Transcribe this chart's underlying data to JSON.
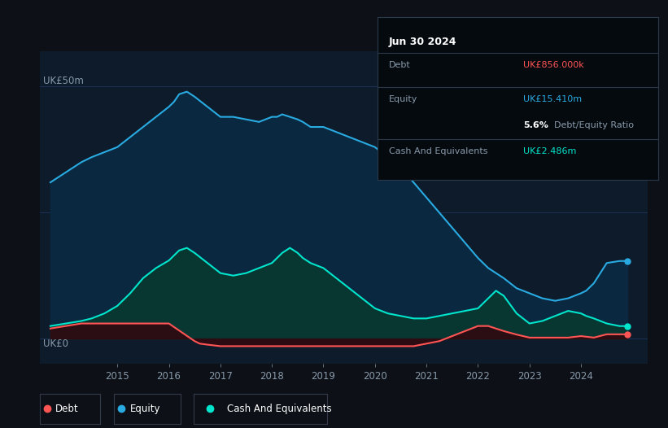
{
  "bg_color": "#0d1117",
  "plot_bg_color": "#0d1b2a",
  "grid_color": "#1e3050",
  "ylim": [
    -5,
    57
  ],
  "xlim_start": 2013.5,
  "xlim_end": 2025.3,
  "xticks": [
    2015,
    2016,
    2017,
    2018,
    2019,
    2020,
    2021,
    2022,
    2023,
    2024
  ],
  "equity_color": "#29abe2",
  "debt_color": "#ff5555",
  "cash_color": "#00e5cc",
  "equity_data_x": [
    2013.7,
    2014.0,
    2014.3,
    2014.5,
    2014.75,
    2015.0,
    2015.25,
    2015.5,
    2015.75,
    2016.0,
    2016.1,
    2016.2,
    2016.35,
    2016.5,
    2016.75,
    2017.0,
    2017.25,
    2017.5,
    2017.75,
    2018.0,
    2018.1,
    2018.2,
    2018.35,
    2018.5,
    2018.6,
    2018.75,
    2019.0,
    2019.25,
    2019.5,
    2019.75,
    2020.0,
    2020.25,
    2020.5,
    2020.75,
    2021.0,
    2021.25,
    2021.5,
    2021.75,
    2022.0,
    2022.1,
    2022.2,
    2022.35,
    2022.5,
    2022.75,
    2023.0,
    2023.25,
    2023.5,
    2023.75,
    2024.0,
    2024.1,
    2024.25,
    2024.5,
    2024.75,
    2024.9
  ],
  "equity_data_y": [
    31,
    33,
    35,
    36,
    37,
    38,
    40,
    42,
    44,
    46,
    47,
    48.5,
    49,
    48,
    46,
    44,
    44,
    43.5,
    43,
    44,
    44,
    44.5,
    44,
    43.5,
    43,
    42,
    42,
    41,
    40,
    39,
    38,
    36,
    34,
    31,
    28,
    25,
    22,
    19,
    16,
    15,
    14,
    13,
    12,
    10,
    9,
    8,
    7.5,
    8,
    9,
    9.5,
    11,
    15,
    15.4,
    15.4
  ],
  "debt_data_x": [
    2013.7,
    2014.0,
    2014.3,
    2014.5,
    2014.75,
    2015.0,
    2015.25,
    2015.5,
    2015.75,
    2016.0,
    2016.5,
    2016.6,
    2016.75,
    2017.0,
    2017.25,
    2017.5,
    2017.75,
    2018.0,
    2018.25,
    2018.5,
    2018.75,
    2019.0,
    2019.25,
    2019.5,
    2019.75,
    2020.0,
    2020.25,
    2020.5,
    2020.75,
    2021.0,
    2021.25,
    2021.5,
    2021.75,
    2022.0,
    2022.1,
    2022.2,
    2022.35,
    2022.5,
    2022.75,
    2023.0,
    2023.25,
    2023.5,
    2023.75,
    2024.0,
    2024.25,
    2024.5,
    2024.75,
    2024.9
  ],
  "debt_data_y": [
    2.0,
    2.5,
    3.0,
    3.0,
    3.0,
    3.0,
    3.0,
    3.0,
    3.0,
    3.0,
    -0.5,
    -1.0,
    -1.2,
    -1.5,
    -1.5,
    -1.5,
    -1.5,
    -1.5,
    -1.5,
    -1.5,
    -1.5,
    -1.5,
    -1.5,
    -1.5,
    -1.5,
    -1.5,
    -1.5,
    -1.5,
    -1.5,
    -1.0,
    -0.5,
    0.5,
    1.5,
    2.5,
    2.5,
    2.5,
    2.0,
    1.5,
    0.8,
    0.2,
    0.2,
    0.2,
    0.2,
    0.5,
    0.2,
    0.856,
    0.856,
    0.856
  ],
  "cash_data_x": [
    2013.7,
    2014.0,
    2014.3,
    2014.5,
    2014.75,
    2015.0,
    2015.25,
    2015.5,
    2015.75,
    2016.0,
    2016.1,
    2016.2,
    2016.35,
    2016.5,
    2016.75,
    2017.0,
    2017.25,
    2017.5,
    2017.75,
    2018.0,
    2018.1,
    2018.2,
    2018.35,
    2018.5,
    2018.6,
    2018.75,
    2019.0,
    2019.25,
    2019.5,
    2019.75,
    2020.0,
    2020.25,
    2020.5,
    2020.75,
    2021.0,
    2021.25,
    2021.5,
    2021.75,
    2022.0,
    2022.1,
    2022.2,
    2022.35,
    2022.5,
    2022.75,
    2023.0,
    2023.25,
    2023.5,
    2023.75,
    2024.0,
    2024.1,
    2024.25,
    2024.5,
    2024.75,
    2024.9
  ],
  "cash_data_y": [
    2.5,
    3.0,
    3.5,
    4.0,
    5.0,
    6.5,
    9.0,
    12.0,
    14.0,
    15.5,
    16.5,
    17.5,
    18.0,
    17.0,
    15.0,
    13.0,
    12.5,
    13.0,
    14.0,
    15.0,
    16.0,
    17.0,
    18.0,
    17.0,
    16.0,
    15.0,
    14.0,
    12.0,
    10.0,
    8.0,
    6.0,
    5.0,
    4.5,
    4.0,
    4.0,
    4.5,
    5.0,
    5.5,
    6.0,
    7.0,
    8.0,
    9.5,
    8.5,
    5.0,
    3.0,
    3.5,
    4.5,
    5.5,
    5.0,
    4.5,
    4.0,
    3.0,
    2.486,
    2.486
  ],
  "info_box": {
    "date": "Jun 30 2024",
    "debt_label": "Debt",
    "debt_value": "UK£856.000k",
    "equity_label": "Equity",
    "equity_value": "UK£15.410m",
    "ratio_bold": "5.6%",
    "ratio_text": " Debt/Equity Ratio",
    "cash_label": "Cash And Equivalents",
    "cash_value": "UK£2.486m"
  },
  "legend_items": [
    "Debt",
    "Equity",
    "Cash And Equivalents"
  ],
  "legend_colors": [
    "#ff5555",
    "#29abe2",
    "#00e5cc"
  ]
}
